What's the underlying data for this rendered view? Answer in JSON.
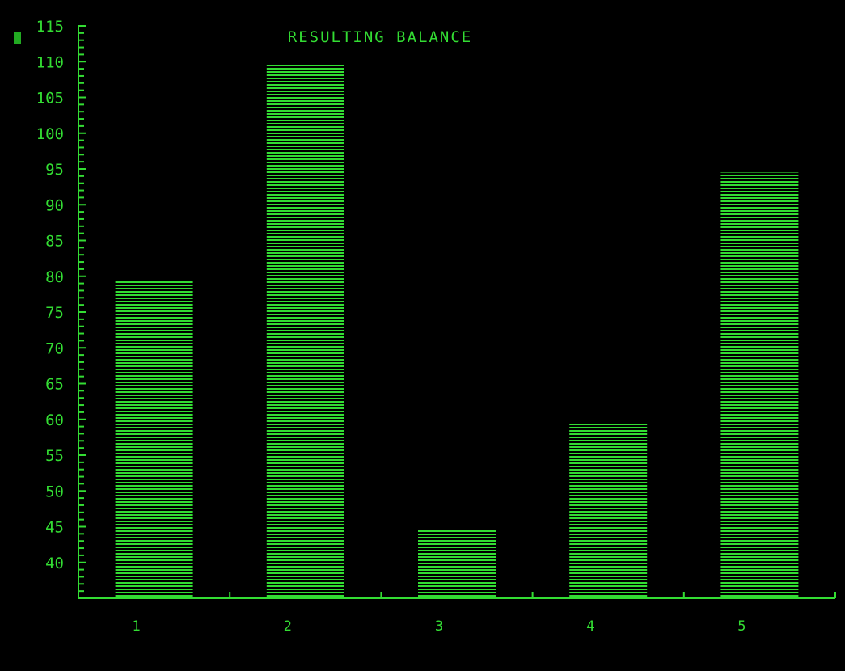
{
  "chart_data": {
    "type": "bar",
    "title": "RESULTING BALANCE",
    "xlabel": "",
    "ylabel": "",
    "categories": [
      "1",
      "2",
      "3",
      "4",
      "5"
    ],
    "values": [
      79.5,
      109.5,
      44.5,
      59.5,
      94.5
    ],
    "ylim": [
      35,
      115
    ],
    "yticks": [
      40,
      45,
      50,
      55,
      60,
      65,
      70,
      75,
      80,
      85,
      90,
      95,
      100,
      105,
      110,
      115
    ],
    "grid": false,
    "bar_fill": "horizontal-scanlines",
    "color": "#33dd33",
    "background": "#000000"
  }
}
